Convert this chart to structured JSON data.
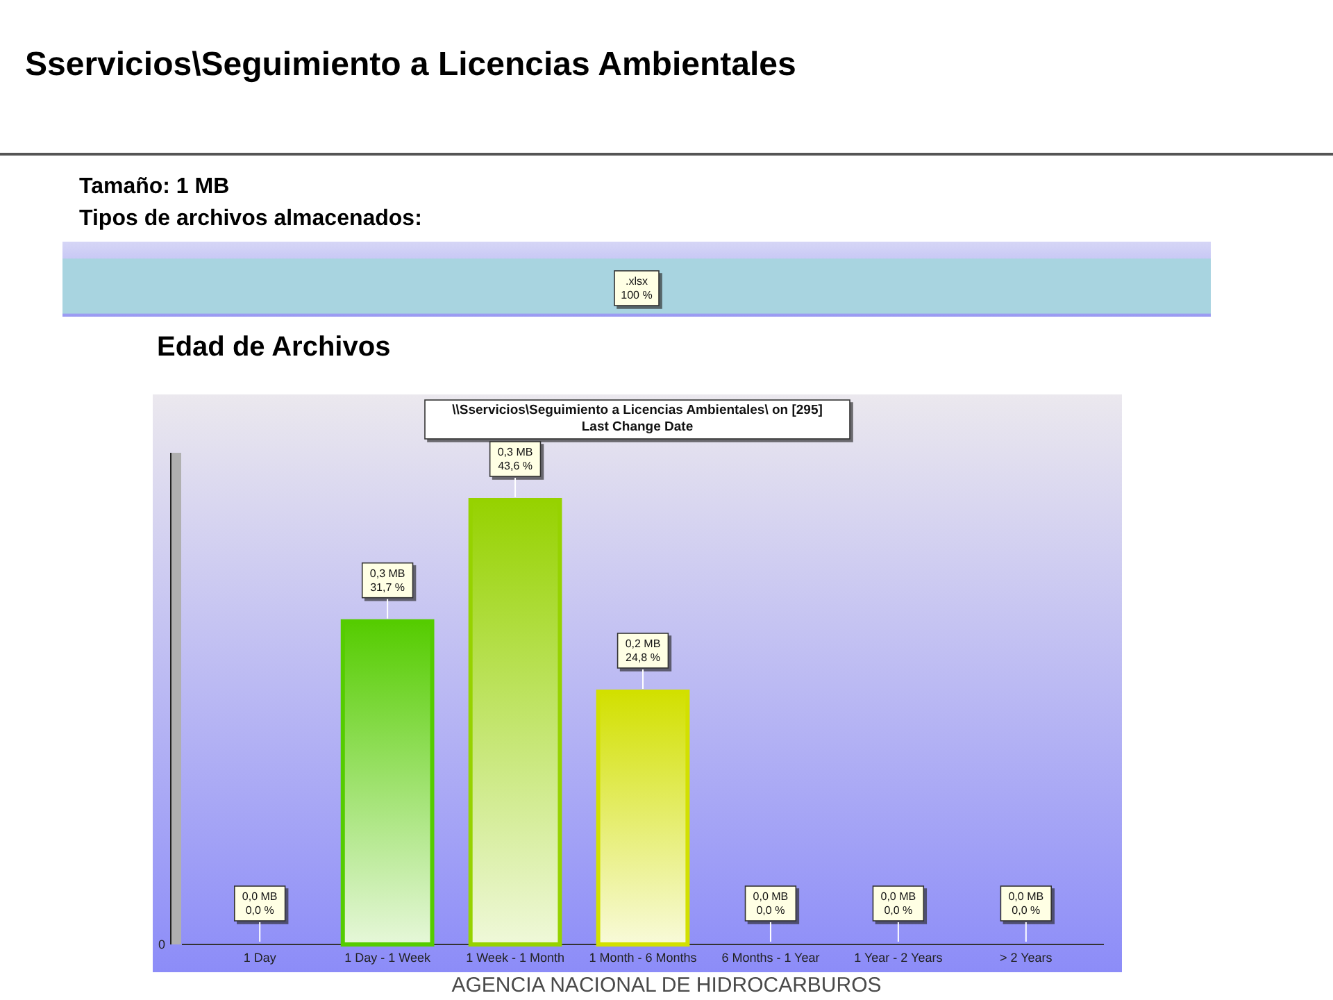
{
  "chart_data": [
    {
      "type": "bar",
      "orientation": "horizontal",
      "title": "Sservicios\\Seguimiento a Licencias Ambientales",
      "subtitle": "Tamaño: 1 MB",
      "annotations": [
        "Tipos de archivos almacenados:"
      ],
      "categories": [
        ".xlsx"
      ],
      "values": [
        100
      ],
      "color": "#a8d4e0",
      "value_labels": [
        "100 %"
      ],
      "tick_labels": "y"
    },
    {
      "type": "bar",
      "title": "Edad de Archivos",
      "subtitle": "\\\\Sservicios\\Seguimiento a Licencias Ambientales\\ on [295]",
      "annotations": [
        "Last Change Date",
        "AGENCIA NACIONAL DE HIDROCARBUROS",
        "0"
      ],
      "categories": [
        "1 Day",
        "1 Day - 1 Week",
        "1 Week - 1 Month",
        "1 Month - 6 Months",
        "6 Months - 1 Year",
        "1 Year - 2 Years",
        "> 2 Years"
      ],
      "values": [
        0,
        31.7,
        43.6,
        24.8,
        0,
        0,
        0
      ],
      "colors": [
        "#008c00",
        "#55cc00",
        "#96d200",
        "#d2e000",
        "#b07a00",
        "#b03800",
        "#a80000"
      ],
      "value_labels": [
        "0,0 MB\n0,0 %",
        "0,3 MB\n31,7 %",
        "0,3 MB\n43,6 %",
        "0,2 MB\n24,8 %",
        "0,0 MB\n0,0 %",
        "0,0 MB\n0,0 %",
        "0,0 MB\n0,0 %"
      ]
    }
  ]
}
